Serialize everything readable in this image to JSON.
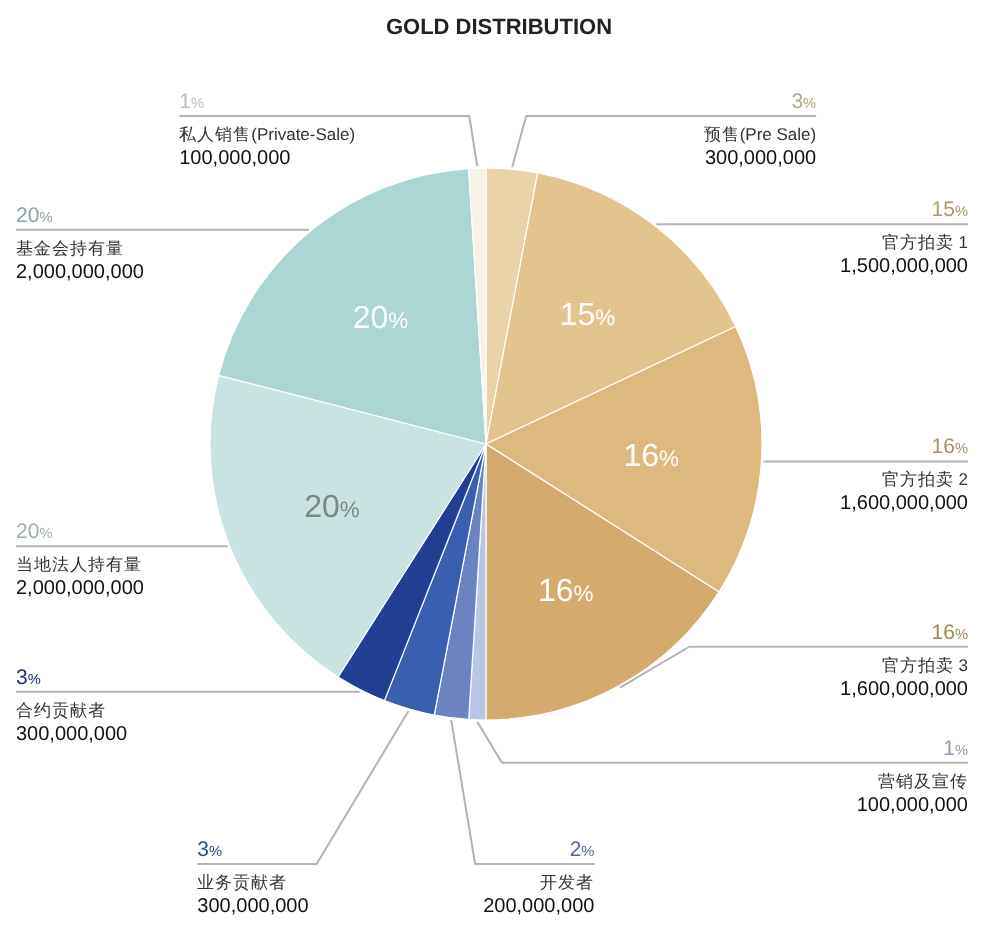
{
  "chart_data": {
    "type": "pie",
    "title": "GOLD DISTRIBUTION",
    "categories": [
      "预售(Pre Sale)",
      "官方拍卖 1",
      "官方拍卖 2",
      "官方拍卖 3",
      "营销及宣传",
      "开发者",
      "业务贡献者",
      "合约贡献者",
      "当地法人持有量",
      "基金会持有量",
      "私人销售(Private-Sale)"
    ],
    "values": [
      3,
      15,
      16,
      16,
      1,
      2,
      3,
      3,
      20,
      20,
      1
    ],
    "colors": [
      "#ead3a8",
      "#e3c48e",
      "#ddb97f",
      "#d5aa6e",
      "#b9c6e6",
      "#6b83c0",
      "#3a5fb0",
      "#233f94",
      "#c9e3e3",
      "#acd6d3",
      "#f7f2e8"
    ],
    "value_labels": [
      "3%",
      "15%",
      "16%",
      "16%",
      "1%",
      "2%",
      "3%",
      "3%",
      "20%",
      "20%",
      "1%"
    ],
    "annotations": [
      {
        "text": "300,000,000",
        "x": "预售(Pre Sale)"
      },
      {
        "text": "1,500,000,000",
        "x": "官方拍卖 1"
      },
      {
        "text": "1,600,000,000",
        "x": "官方拍卖 2"
      },
      {
        "text": "1,600,000,000",
        "x": "官方拍卖 3"
      },
      {
        "text": "100,000,000",
        "x": "营销及宣传"
      },
      {
        "text": "200,000,000",
        "x": "开发者"
      },
      {
        "text": "300,000,000",
        "x": "业务贡献者"
      },
      {
        "text": "300,000,000",
        "x": "合约贡献者"
      },
      {
        "text": "2,000,000,000",
        "x": "当地法人持有量"
      },
      {
        "text": "2,000,000,000",
        "x": "基金会持有量"
      },
      {
        "text": "100,000,000",
        "x": "私人销售(Private-Sale)"
      }
    ]
  }
}
